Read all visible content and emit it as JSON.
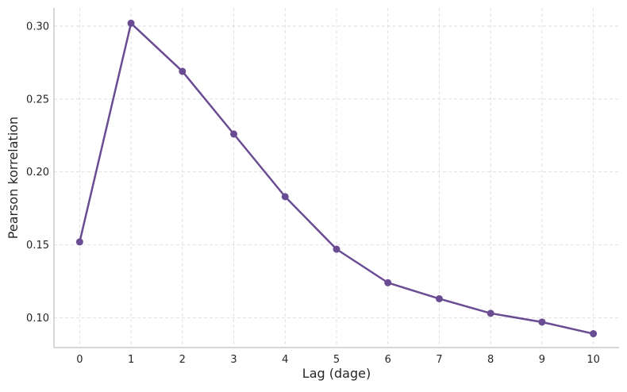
{
  "chart_data": {
    "type": "line",
    "title": "",
    "xlabel": "Lag (dage)",
    "ylabel": "Pearson korrelation",
    "x": [
      0,
      1,
      2,
      3,
      4,
      5,
      6,
      7,
      8,
      9,
      10
    ],
    "series": [
      {
        "values": [
          0.152,
          0.302,
          0.269,
          0.226,
          0.183,
          0.147,
          0.124,
          0.113,
          0.103,
          0.097,
          0.089
        ]
      }
    ],
    "xticks": [
      "0",
      "1",
      "2",
      "3",
      "4",
      "5",
      "6",
      "7",
      "8",
      "9",
      "10"
    ],
    "yticks": [
      "0.10",
      "0.15",
      "0.20",
      "0.25",
      "0.30"
    ],
    "xlim": [
      -0.5,
      10.5
    ],
    "ylim": [
      0.0795,
      0.3125
    ],
    "grid": true,
    "line_color": "#6a4c93",
    "grid_color": "#d9d9d9",
    "axis_color": "#bfbfbf"
  }
}
